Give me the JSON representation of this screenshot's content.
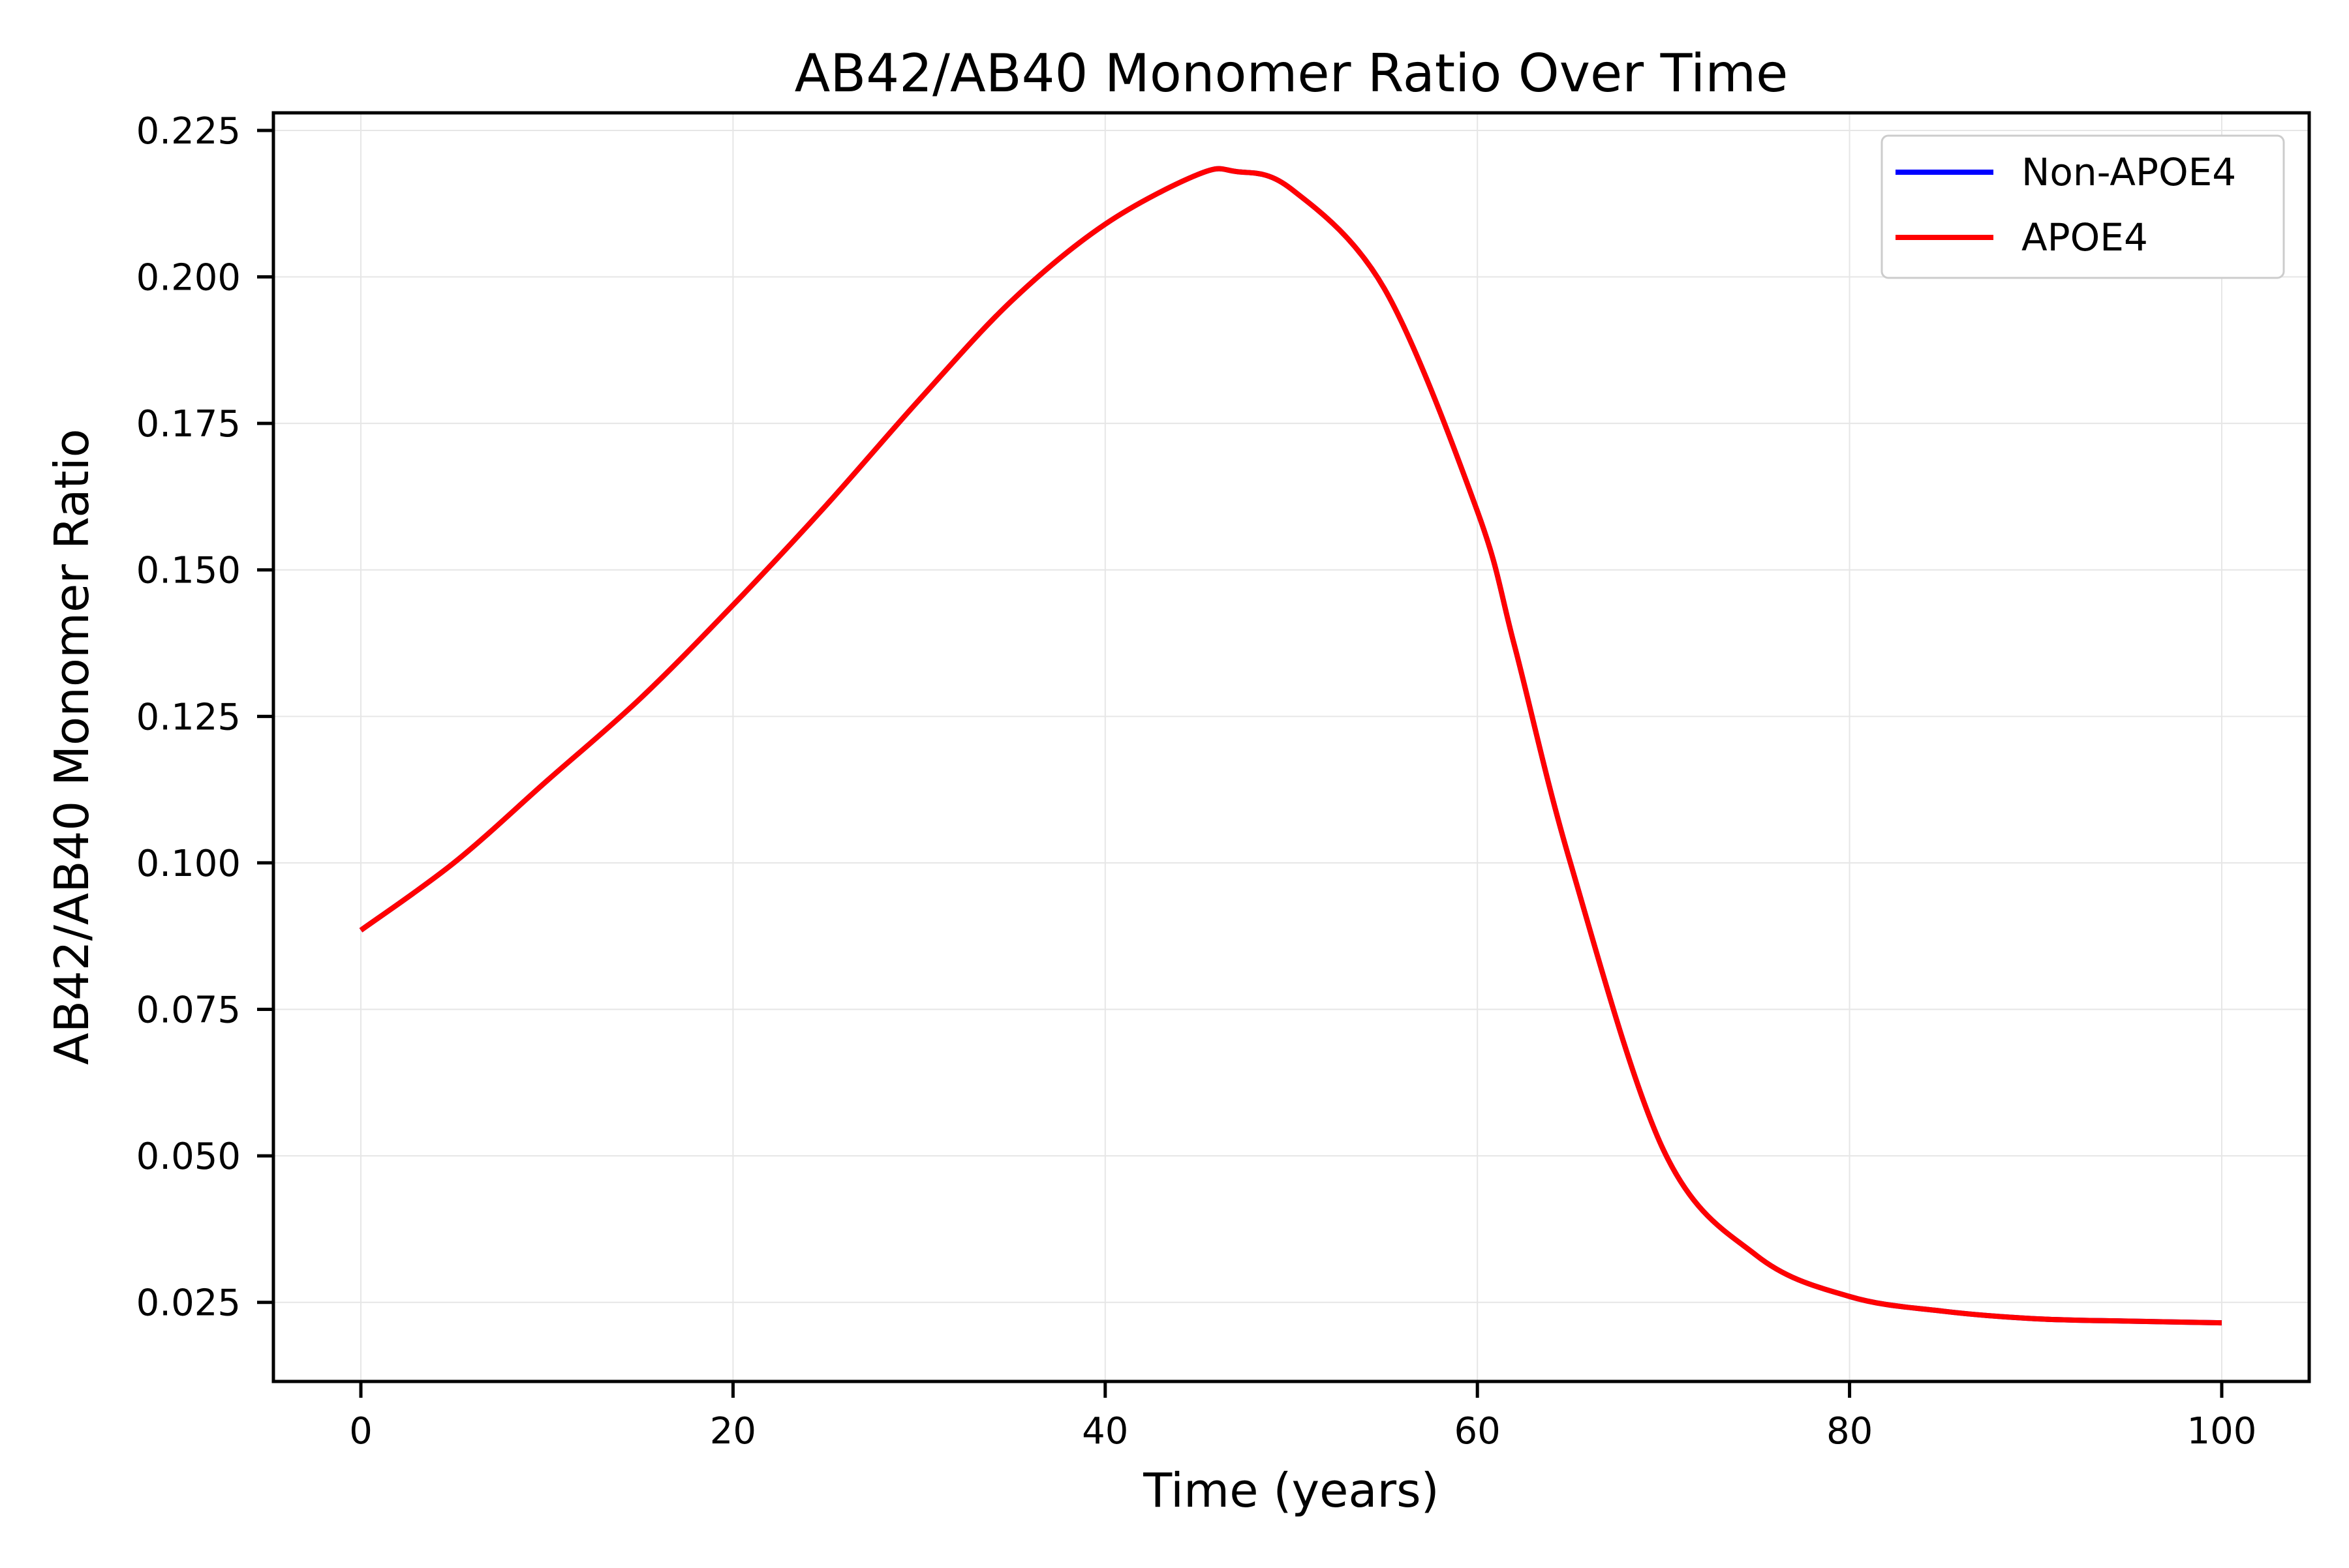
{
  "chart_data": {
    "type": "line",
    "title": "AB42/AB40 Monomer Ratio Over Time",
    "xlabel": "Time (years)",
    "ylabel": "AB42/AB40 Monomer Ratio",
    "xlim": [
      -4.7,
      104.7
    ],
    "ylim": [
      0.0115,
      0.228
    ],
    "xticks": [
      0,
      20,
      40,
      60,
      80,
      100
    ],
    "xtick_labels": [
      "0",
      "20",
      "40",
      "60",
      "80",
      "100"
    ],
    "yticks": [
      0.025,
      0.05,
      0.075,
      0.1,
      0.125,
      0.15,
      0.175,
      0.2,
      0.225
    ],
    "ytick_labels": [
      "0.025",
      "0.050",
      "0.075",
      "0.100",
      "0.125",
      "0.150",
      "0.175",
      "0.200",
      "0.225"
    ],
    "grid": true,
    "legend_position": "top-right",
    "series": [
      {
        "name": "Non-APOE4",
        "color": "#0000ff",
        "x": [
          0,
          5,
          10,
          15,
          20,
          25,
          30,
          35,
          40,
          45,
          47,
          50,
          55,
          60,
          62,
          65,
          70,
          75,
          80,
          85,
          90,
          95,
          100
        ],
        "y": [
          0.0885,
          0.1,
          0.114,
          0.128,
          0.144,
          0.161,
          0.179,
          0.196,
          0.209,
          0.2175,
          0.218,
          0.215,
          0.198,
          0.16,
          0.137,
          0.1,
          0.051,
          0.033,
          0.026,
          0.0235,
          0.0222,
          0.0218,
          0.0215
        ]
      },
      {
        "name": "APOE4",
        "color": "#ff0000",
        "x": [
          0,
          5,
          10,
          15,
          20,
          25,
          30,
          35,
          40,
          45,
          47,
          50,
          55,
          60,
          62,
          65,
          70,
          75,
          80,
          85,
          90,
          95,
          100
        ],
        "y": [
          0.0885,
          0.1,
          0.114,
          0.128,
          0.144,
          0.161,
          0.179,
          0.196,
          0.209,
          0.2175,
          0.218,
          0.215,
          0.198,
          0.16,
          0.137,
          0.1,
          0.051,
          0.033,
          0.026,
          0.0235,
          0.0222,
          0.0218,
          0.0215
        ]
      }
    ]
  }
}
